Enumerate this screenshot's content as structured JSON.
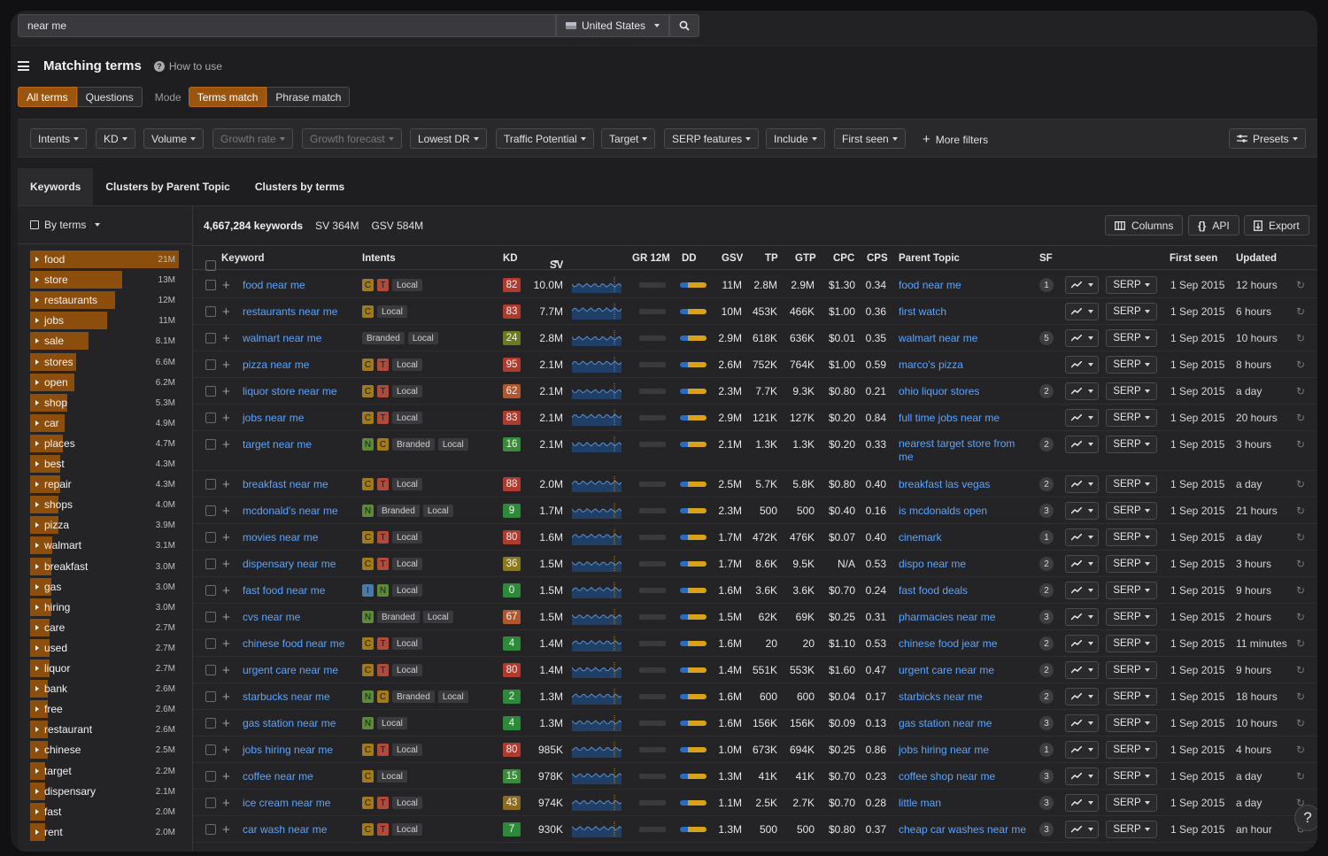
{
  "search": {
    "query": "near me",
    "country": "United States"
  },
  "page": {
    "title": "Matching terms",
    "how_to_use": "How to use"
  },
  "modes": {
    "all_terms": "All terms",
    "questions": "Questions",
    "mode_label": "Mode",
    "terms_match": "Terms match",
    "phrase_match": "Phrase match"
  },
  "filters": [
    "Intents",
    "KD",
    "Volume",
    "Growth rate",
    "Growth forecast",
    "Lowest DR",
    "Traffic Potential",
    "Target",
    "SERP features",
    "Include",
    "First seen"
  ],
  "more_filters": "More filters",
  "presets": "Presets",
  "tabs": [
    "Keywords",
    "Clusters by Parent Topic",
    "Clusters by terms"
  ],
  "sidebar": {
    "grouping": "By terms",
    "terms": [
      {
        "label": "food",
        "count": "21M",
        "share": 1.0
      },
      {
        "label": "store",
        "count": "13M",
        "share": 0.62
      },
      {
        "label": "restaurants",
        "count": "12M",
        "share": 0.57
      },
      {
        "label": "jobs",
        "count": "11M",
        "share": 0.52
      },
      {
        "label": "sale",
        "count": "8.1M",
        "share": 0.39
      },
      {
        "label": "stores",
        "count": "6.6M",
        "share": 0.31
      },
      {
        "label": "open",
        "count": "6.2M",
        "share": 0.3
      },
      {
        "label": "shop",
        "count": "5.3M",
        "share": 0.25
      },
      {
        "label": "car",
        "count": "4.9M",
        "share": 0.23
      },
      {
        "label": "places",
        "count": "4.7M",
        "share": 0.22
      },
      {
        "label": "best",
        "count": "4.3M",
        "share": 0.2
      },
      {
        "label": "repair",
        "count": "4.3M",
        "share": 0.2
      },
      {
        "label": "shops",
        "count": "4.0M",
        "share": 0.19
      },
      {
        "label": "pizza",
        "count": "3.9M",
        "share": 0.19
      },
      {
        "label": "walmart",
        "count": "3.1M",
        "share": 0.15
      },
      {
        "label": "breakfast",
        "count": "3.0M",
        "share": 0.14
      },
      {
        "label": "gas",
        "count": "3.0M",
        "share": 0.14
      },
      {
        "label": "hiring",
        "count": "3.0M",
        "share": 0.14
      },
      {
        "label": "care",
        "count": "2.7M",
        "share": 0.13
      },
      {
        "label": "used",
        "count": "2.7M",
        "share": 0.13
      },
      {
        "label": "liquor",
        "count": "2.7M",
        "share": 0.13
      },
      {
        "label": "bank",
        "count": "2.6M",
        "share": 0.12
      },
      {
        "label": "free",
        "count": "2.6M",
        "share": 0.12
      },
      {
        "label": "restaurant",
        "count": "2.6M",
        "share": 0.12
      },
      {
        "label": "chinese",
        "count": "2.5M",
        "share": 0.12
      },
      {
        "label": "target",
        "count": "2.2M",
        "share": 0.1
      },
      {
        "label": "dispensary",
        "count": "2.1M",
        "share": 0.1
      },
      {
        "label": "fast",
        "count": "2.0M",
        "share": 0.1
      },
      {
        "label": "rent",
        "count": "2.0M",
        "share": 0.1
      }
    ]
  },
  "summary": {
    "keywords": "4,667,284 keywords",
    "sv": "SV 364M",
    "gsv": "GSV 584M"
  },
  "toolbar": {
    "columns": "Columns",
    "api": "API",
    "export": "Export"
  },
  "columns": {
    "keyword": "Keyword",
    "intents": "Intents",
    "kd": "KD",
    "sv": "SV",
    "gr": "GR 12M",
    "dd": "DD",
    "gsv": "GSV",
    "tp": "TP",
    "gtp": "GTP",
    "cpc": "CPC",
    "cps": "CPS",
    "parent": "Parent Topic",
    "sf": "SF",
    "first_seen": "First seen",
    "updated": "Updated"
  },
  "serp_label": "SERP",
  "rows": [
    {
      "kw": "food near me",
      "intents": [
        "C",
        "T"
      ],
      "tags": [
        "Local"
      ],
      "kd": "82",
      "kd_color": "#b03a2e",
      "sv": "10.0M",
      "gsv": "11M",
      "tp": "2.8M",
      "gtp": "2.9M",
      "cpc": "$1.30",
      "cps": "0.34",
      "parent": "food near me",
      "sf": "1",
      "first_seen": "1 Sep 2015",
      "updated": "12 hours"
    },
    {
      "kw": "restaurants near me",
      "intents": [
        "C"
      ],
      "tags": [
        "Local"
      ],
      "kd": "83",
      "kd_color": "#b03a2e",
      "sv": "7.7M",
      "gsv": "10M",
      "tp": "453K",
      "gtp": "466K",
      "cpc": "$1.00",
      "cps": "0.36",
      "parent": "first watch",
      "sf": "",
      "first_seen": "1 Sep 2015",
      "updated": "6 hours"
    },
    {
      "kw": "walmart near me",
      "intents": [],
      "tags": [
        "Branded",
        "Local"
      ],
      "kd": "24",
      "kd_color": "#6a7a1e",
      "sv": "2.8M",
      "gsv": "2.9M",
      "tp": "618K",
      "gtp": "636K",
      "cpc": "$0.01",
      "cps": "0.35",
      "parent": "walmart near me",
      "sf": "5",
      "first_seen": "1 Sep 2015",
      "updated": "10 hours"
    },
    {
      "kw": "pizza near me",
      "intents": [
        "C",
        "T"
      ],
      "tags": [
        "Local"
      ],
      "kd": "95",
      "kd_color": "#b03a2e",
      "sv": "2.1M",
      "gsv": "2.6M",
      "tp": "752K",
      "gtp": "764K",
      "cpc": "$1.00",
      "cps": "0.59",
      "parent": "marco's pizza",
      "sf": "",
      "first_seen": "1 Sep 2015",
      "updated": "8 hours"
    },
    {
      "kw": "liquor store near me",
      "intents": [
        "C",
        "T"
      ],
      "tags": [
        "Local"
      ],
      "kd": "62",
      "kd_color": "#b0572e",
      "sv": "2.1M",
      "gsv": "2.3M",
      "tp": "7.7K",
      "gtp": "9.3K",
      "cpc": "$0.80",
      "cps": "0.21",
      "parent": "ohio liquor stores",
      "sf": "2",
      "first_seen": "1 Sep 2015",
      "updated": "a day"
    },
    {
      "kw": "jobs near me",
      "intents": [
        "C",
        "T"
      ],
      "tags": [
        "Local"
      ],
      "kd": "83",
      "kd_color": "#b03a2e",
      "sv": "2.1M",
      "gsv": "2.9M",
      "tp": "121K",
      "gtp": "127K",
      "cpc": "$0.20",
      "cps": "0.84",
      "parent": "full time jobs near me",
      "sf": "",
      "first_seen": "1 Sep 2015",
      "updated": "20 hours"
    },
    {
      "kw": "target near me",
      "intents": [
        "N",
        "C"
      ],
      "tags": [
        "Branded",
        "Local"
      ],
      "kd": "16",
      "kd_color": "#3a8a3a",
      "sv": "2.1M",
      "gsv": "2.1M",
      "tp": "1.3K",
      "gtp": "1.3K",
      "cpc": "$0.20",
      "cps": "0.33",
      "parent": "nearest target store from me",
      "sf": "2",
      "first_seen": "1 Sep 2015",
      "updated": "3 hours"
    },
    {
      "kw": "breakfast near me",
      "intents": [
        "C",
        "T"
      ],
      "tags": [
        "Local"
      ],
      "kd": "88",
      "kd_color": "#b03a2e",
      "sv": "2.0M",
      "gsv": "2.5M",
      "tp": "5.7K",
      "gtp": "5.8K",
      "cpc": "$0.80",
      "cps": "0.40",
      "parent": "breakfast las vegas",
      "sf": "2",
      "first_seen": "1 Sep 2015",
      "updated": "a day"
    },
    {
      "kw": "mcdonald's near me",
      "intents": [
        "N"
      ],
      "tags": [
        "Branded",
        "Local"
      ],
      "kd": "9",
      "kd_color": "#2e8a3a",
      "sv": "1.7M",
      "gsv": "2.3M",
      "tp": "500",
      "gtp": "500",
      "cpc": "$0.40",
      "cps": "0.16",
      "parent": "is mcdonalds open",
      "sf": "3",
      "first_seen": "1 Sep 2015",
      "updated": "21 hours"
    },
    {
      "kw": "movies near me",
      "intents": [
        "C",
        "T"
      ],
      "tags": [
        "Local"
      ],
      "kd": "80",
      "kd_color": "#b03a2e",
      "sv": "1.6M",
      "gsv": "1.7M",
      "tp": "472K",
      "gtp": "476K",
      "cpc": "$0.07",
      "cps": "0.40",
      "parent": "cinemark",
      "sf": "1",
      "first_seen": "1 Sep 2015",
      "updated": "a day"
    },
    {
      "kw": "dispensary near me",
      "intents": [
        "C",
        "T"
      ],
      "tags": [
        "Local"
      ],
      "kd": "36",
      "kd_color": "#8a7a1e",
      "sv": "1.5M",
      "gsv": "1.7M",
      "tp": "8.6K",
      "gtp": "9.5K",
      "cpc": "N/A",
      "cps": "0.53",
      "parent": "dispo near me",
      "sf": "2",
      "first_seen": "1 Sep 2015",
      "updated": "3 hours"
    },
    {
      "kw": "fast food near me",
      "intents": [
        "I",
        "N"
      ],
      "tags": [
        "Local"
      ],
      "kd": "0",
      "kd_color": "#2e8a3a",
      "sv": "1.5M",
      "gsv": "1.6M",
      "tp": "3.6K",
      "gtp": "3.6K",
      "cpc": "$0.70",
      "cps": "0.24",
      "parent": "fast food deals",
      "sf": "2",
      "first_seen": "1 Sep 2015",
      "updated": "9 hours"
    },
    {
      "kw": "cvs near me",
      "intents": [
        "N"
      ],
      "tags": [
        "Branded",
        "Local"
      ],
      "kd": "67",
      "kd_color": "#b0572e",
      "sv": "1.5M",
      "gsv": "1.5M",
      "tp": "62K",
      "gtp": "69K",
      "cpc": "$0.25",
      "cps": "0.31",
      "parent": "pharmacies near me",
      "sf": "3",
      "first_seen": "1 Sep 2015",
      "updated": "2 hours"
    },
    {
      "kw": "chinese food near me",
      "intents": [
        "C",
        "T"
      ],
      "tags": [
        "Local"
      ],
      "kd": "4",
      "kd_color": "#2e8a3a",
      "sv": "1.4M",
      "gsv": "1.6M",
      "tp": "20",
      "gtp": "20",
      "cpc": "$1.10",
      "cps": "0.53",
      "parent": "chinese food jear me",
      "sf": "2",
      "first_seen": "1 Sep 2015",
      "updated": "11 minutes"
    },
    {
      "kw": "urgent care near me",
      "intents": [
        "C",
        "T"
      ],
      "tags": [
        "Local"
      ],
      "kd": "80",
      "kd_color": "#b03a2e",
      "sv": "1.4M",
      "gsv": "1.4M",
      "tp": "551K",
      "gtp": "553K",
      "cpc": "$1.60",
      "cps": "0.47",
      "parent": "urgent care near me",
      "sf": "2",
      "first_seen": "1 Sep 2015",
      "updated": "9 hours"
    },
    {
      "kw": "starbucks near me",
      "intents": [
        "N",
        "C"
      ],
      "tags": [
        "Branded",
        "Local"
      ],
      "kd": "2",
      "kd_color": "#2e8a3a",
      "sv": "1.3M",
      "gsv": "1.6M",
      "tp": "600",
      "gtp": "600",
      "cpc": "$0.04",
      "cps": "0.17",
      "parent": "starbicks near me",
      "sf": "2",
      "first_seen": "1 Sep 2015",
      "updated": "18 hours"
    },
    {
      "kw": "gas station near me",
      "intents": [
        "N"
      ],
      "tags": [
        "Local"
      ],
      "kd": "4",
      "kd_color": "#2e8a3a",
      "sv": "1.3M",
      "gsv": "1.6M",
      "tp": "156K",
      "gtp": "156K",
      "cpc": "$0.09",
      "cps": "0.13",
      "parent": "gas station near me",
      "sf": "3",
      "first_seen": "1 Sep 2015",
      "updated": "10 hours"
    },
    {
      "kw": "jobs hiring near me",
      "intents": [
        "C",
        "T"
      ],
      "tags": [
        "Local"
      ],
      "kd": "80",
      "kd_color": "#b03a2e",
      "sv": "985K",
      "gsv": "1.0M",
      "tp": "673K",
      "gtp": "694K",
      "cpc": "$0.25",
      "cps": "0.86",
      "parent": "jobs hiring near me",
      "sf": "1",
      "first_seen": "1 Sep 2015",
      "updated": "4 hours"
    },
    {
      "kw": "coffee near me",
      "intents": [
        "C"
      ],
      "tags": [
        "Local"
      ],
      "kd": "15",
      "kd_color": "#3a8a3a",
      "sv": "978K",
      "gsv": "1.3M",
      "tp": "41K",
      "gtp": "41K",
      "cpc": "$0.70",
      "cps": "0.23",
      "parent": "coffee shop near me",
      "sf": "3",
      "first_seen": "1 Sep 2015",
      "updated": "a day"
    },
    {
      "kw": "ice cream near me",
      "intents": [
        "C",
        "T"
      ],
      "tags": [
        "Local"
      ],
      "kd": "43",
      "kd_color": "#8a6a1e",
      "sv": "974K",
      "gsv": "1.1M",
      "tp": "2.5K",
      "gtp": "2.7K",
      "cpc": "$0.70",
      "cps": "0.28",
      "parent": "little man",
      "sf": "3",
      "first_seen": "1 Sep 2015",
      "updated": "a day"
    },
    {
      "kw": "car wash near me",
      "intents": [
        "C",
        "T"
      ],
      "tags": [
        "Local"
      ],
      "kd": "7",
      "kd_color": "#2e8a3a",
      "sv": "930K",
      "gsv": "1.3M",
      "tp": "500",
      "gtp": "500",
      "cpc": "$0.80",
      "cps": "0.37",
      "parent": "cheap car washes near me",
      "sf": "3",
      "first_seen": "1 Sep 2015",
      "updated": "an hour"
    }
  ],
  "colors": {
    "accent": "#9a560f",
    "link": "#5aa4ff"
  }
}
